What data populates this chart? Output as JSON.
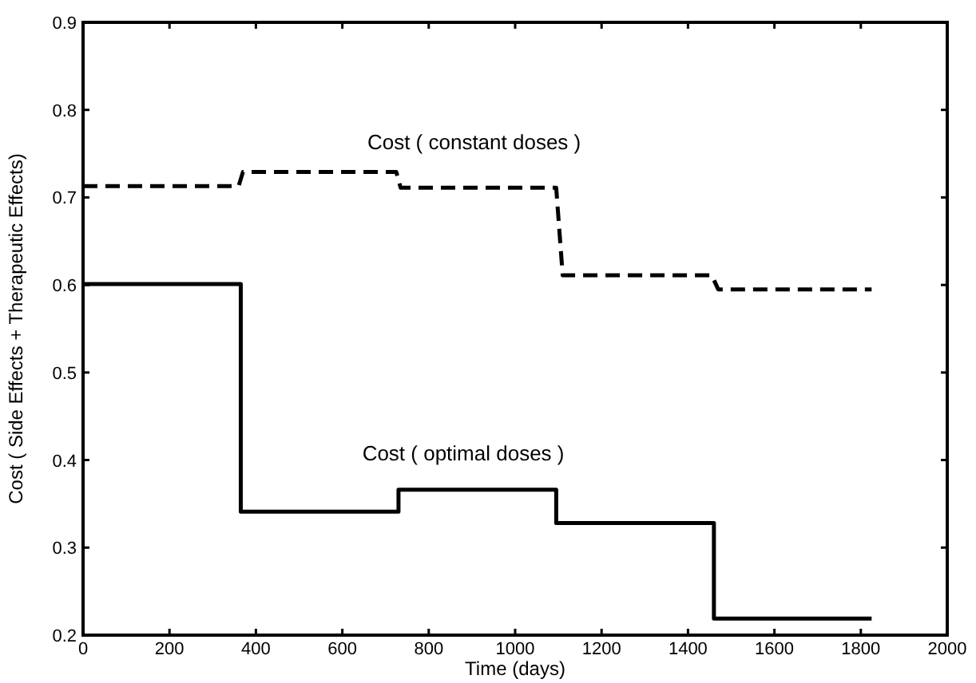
{
  "chart_data": {
    "type": "line",
    "xlabel": "Time (days)",
    "ylabel": "Cost ( Side Effects + Therapeutic Effects)",
    "xlim": [
      0,
      2000
    ],
    "xticks": [
      0,
      200,
      400,
      600,
      800,
      1000,
      1200,
      1400,
      1600,
      1800,
      2000
    ],
    "ylim": [
      0.2,
      0.9
    ],
    "yticks": [
      0.2,
      0.3,
      0.4,
      0.5,
      0.6,
      0.7,
      0.8,
      0.9
    ],
    "grid": false,
    "marker": "none",
    "series": [
      {
        "line_style": "dashed",
        "color": "#000000",
        "x": [
          0,
          360,
          370,
          725,
          735,
          1095,
          1110,
          1455,
          1470,
          1825
        ],
        "values": [
          0.713,
          0.713,
          0.729,
          0.729,
          0.711,
          0.711,
          0.611,
          0.611,
          0.595,
          0.595
        ]
      },
      {
        "type": "step",
        "line_style": "solid",
        "color": "#000000",
        "x": [
          0,
          365,
          730,
          1095,
          1460,
          1825
        ],
        "values": [
          0.601,
          0.341,
          0.366,
          0.328,
          0.219,
          0.219
        ]
      }
    ],
    "annotations": [
      "Cost ( constant doses )",
      "Cost ( optimal doses )"
    ]
  }
}
